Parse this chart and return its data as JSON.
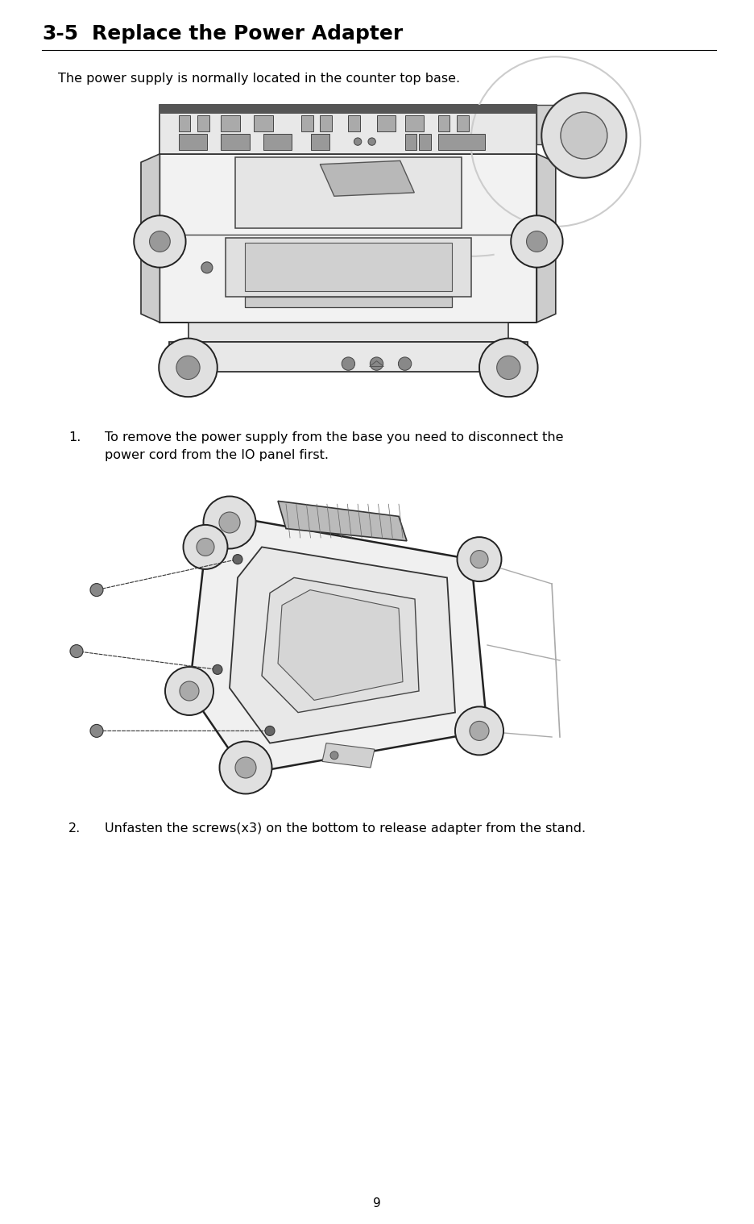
{
  "title_number": "3-5",
  "title_text": "Replace the Power Adapter",
  "body_text": "The power supply is normally located in the counter top base.",
  "step1_num": "1.",
  "step1_line1": "To remove the power supply from the base you need to disconnect the",
  "step1_line2": "power cord from the IO panel first.",
  "step2_num": "2.",
  "step2_text": "Unfasten the screws(x3) on the bottom to release adapter from the stand.",
  "page_number": "9",
  "bg_color": "#ffffff",
  "text_color": "#000000",
  "title_fontsize": 18,
  "body_fontsize": 11.5,
  "step_fontsize": 11.5,
  "page_num_fontsize": 11
}
